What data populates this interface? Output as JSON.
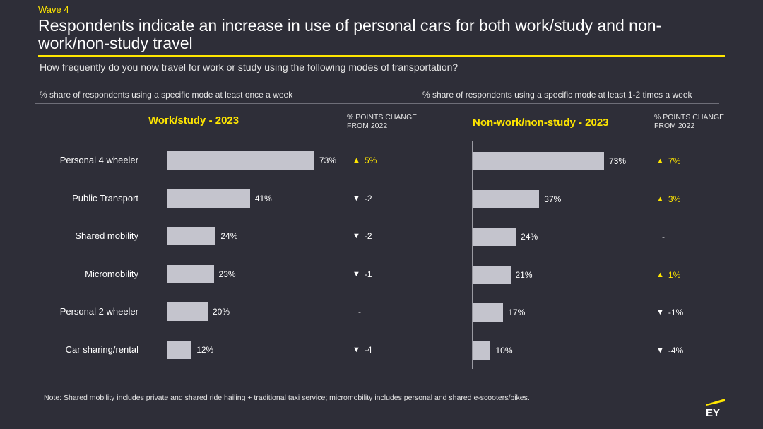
{
  "header": {
    "wave": "Wave 4",
    "title": "Respondents indicate an increase in use of personal cars for both work/study and non-work/non-study travel",
    "question": "How frequently do you now travel for work or study using the following modes of transportation?"
  },
  "subtitles": {
    "left": "% share of respondents using a specific mode at least once a week",
    "right": "% share of respondents using a specific mode at least 1-2 times a week"
  },
  "change_header": "% POINTS CHANGE FROM 2022",
  "note": "Note: Shared mobility includes private and shared ride hailing + traditional taxi service; micromobility includes personal and shared e-scooters/bikes.",
  "logo_text": "EY",
  "colors": {
    "accent": "#ffe600",
    "bar": "#c4c4cd",
    "background": "#2e2e38"
  },
  "chart_data": [
    {
      "type": "bar",
      "orientation": "horizontal",
      "title": "Work/study - 2023",
      "categories": [
        "Personal 4 wheeler",
        "Public Transport",
        "Shared mobility",
        "Micromobility",
        "Personal 2 wheeler",
        "Car sharing/rental"
      ],
      "values": [
        73,
        41,
        24,
        23,
        20,
        12
      ],
      "value_labels": [
        "73%",
        "41%",
        "24%",
        "23%",
        "20%",
        "12%"
      ],
      "change_from_2022": [
        5,
        -2,
        -2,
        -1,
        null,
        -4
      ],
      "change_labels": [
        "5%",
        "-2",
        "-2",
        "-1",
        "-",
        "-4"
      ],
      "xlim": [
        0,
        100
      ]
    },
    {
      "type": "bar",
      "orientation": "horizontal",
      "title": "Non-work/non-study - 2023",
      "categories": [
        "Personal 4 wheeler",
        "Public Transport",
        "Shared mobility",
        "Micromobility",
        "Personal 2 wheeler",
        "Car sharing/rental"
      ],
      "values": [
        73,
        37,
        24,
        21,
        17,
        10
      ],
      "value_labels": [
        "73%",
        "37%",
        "24%",
        "21%",
        "17%",
        "10%"
      ],
      "change_from_2022": [
        7,
        3,
        null,
        1,
        -1,
        -4
      ],
      "change_labels": [
        "7%",
        "3%",
        "-",
        "1%",
        "-1%",
        "-4%"
      ],
      "xlim": [
        0,
        100
      ]
    }
  ]
}
